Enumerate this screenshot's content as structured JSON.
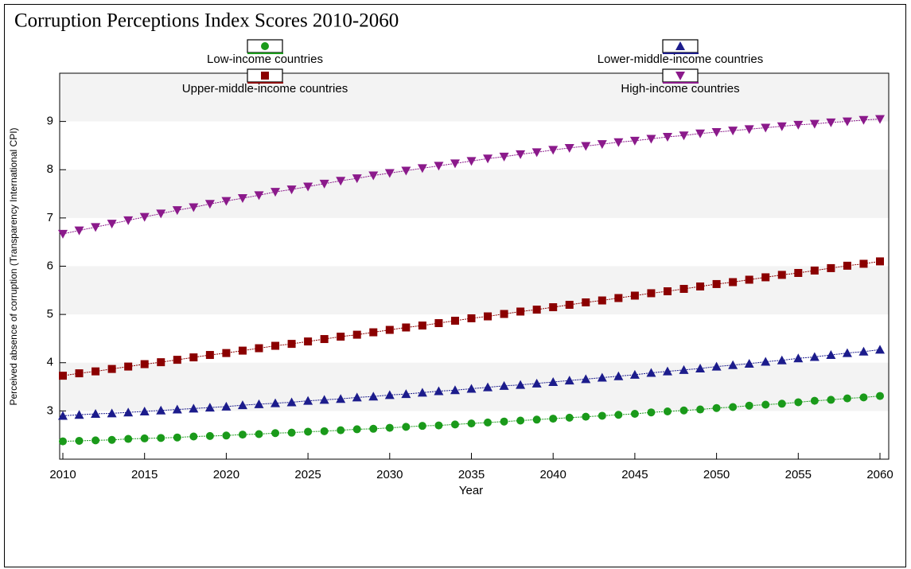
{
  "chart_data": {
    "type": "line",
    "title": "Corruption Perceptions Index Scores 2010-2060",
    "xlabel": "Year",
    "ylabel": "Perceived absence of corruption (Transparency International CPI)",
    "x": [
      2010,
      2011,
      2012,
      2013,
      2014,
      2015,
      2016,
      2017,
      2018,
      2019,
      2020,
      2021,
      2022,
      2023,
      2024,
      2025,
      2026,
      2027,
      2028,
      2029,
      2030,
      2031,
      2032,
      2033,
      2034,
      2035,
      2036,
      2037,
      2038,
      2039,
      2040,
      2041,
      2042,
      2043,
      2044,
      2045,
      2046,
      2047,
      2048,
      2049,
      2050,
      2051,
      2052,
      2053,
      2054,
      2055,
      2056,
      2057,
      2058,
      2059,
      2060
    ],
    "series": [
      {
        "name": "Low-income countries",
        "color": "#1a9a1a",
        "marker": "circle",
        "values": [
          2.37,
          2.38,
          2.39,
          2.4,
          2.42,
          2.43,
          2.44,
          2.45,
          2.47,
          2.48,
          2.49,
          2.51,
          2.52,
          2.54,
          2.55,
          2.57,
          2.58,
          2.6,
          2.62,
          2.63,
          2.65,
          2.67,
          2.69,
          2.7,
          2.72,
          2.74,
          2.76,
          2.78,
          2.8,
          2.82,
          2.84,
          2.86,
          2.88,
          2.9,
          2.92,
          2.94,
          2.97,
          2.99,
          3.01,
          3.03,
          3.06,
          3.08,
          3.11,
          3.13,
          3.15,
          3.18,
          3.21,
          3.23,
          3.26,
          3.28,
          3.31
        ]
      },
      {
        "name": "Lower-middle-income countries",
        "color": "#1c1c8c",
        "marker": "triangle-up",
        "values": [
          2.9,
          2.92,
          2.94,
          2.95,
          2.97,
          2.99,
          3.01,
          3.03,
          3.05,
          3.07,
          3.09,
          3.12,
          3.14,
          3.16,
          3.18,
          3.21,
          3.23,
          3.25,
          3.28,
          3.3,
          3.33,
          3.35,
          3.38,
          3.41,
          3.43,
          3.46,
          3.49,
          3.52,
          3.54,
          3.57,
          3.6,
          3.63,
          3.66,
          3.69,
          3.72,
          3.75,
          3.79,
          3.82,
          3.85,
          3.88,
          3.92,
          3.95,
          3.98,
          4.02,
          4.05,
          4.09,
          4.12,
          4.16,
          4.2,
          4.23,
          4.27
        ]
      },
      {
        "name": "Upper-middle-income countries",
        "color": "#8b0000",
        "marker": "square",
        "values": [
          3.73,
          3.78,
          3.82,
          3.87,
          3.92,
          3.97,
          4.01,
          4.06,
          4.11,
          4.16,
          4.2,
          4.25,
          4.3,
          4.35,
          4.39,
          4.44,
          4.49,
          4.54,
          4.58,
          4.63,
          4.68,
          4.73,
          4.77,
          4.82,
          4.87,
          4.92,
          4.96,
          5.01,
          5.06,
          5.1,
          5.15,
          5.2,
          5.25,
          5.29,
          5.34,
          5.39,
          5.44,
          5.48,
          5.53,
          5.58,
          5.63,
          5.67,
          5.72,
          5.77,
          5.82,
          5.86,
          5.91,
          5.96,
          6.01,
          6.05,
          6.1
        ]
      },
      {
        "name": "High-income countries",
        "color": "#8b1a8b",
        "marker": "triangle-down",
        "values": [
          6.67,
          6.74,
          6.81,
          6.88,
          6.95,
          7.02,
          7.09,
          7.16,
          7.22,
          7.29,
          7.35,
          7.41,
          7.47,
          7.54,
          7.59,
          7.65,
          7.71,
          7.77,
          7.82,
          7.88,
          7.93,
          7.98,
          8.03,
          8.08,
          8.13,
          8.18,
          8.23,
          8.27,
          8.32,
          8.36,
          8.41,
          8.45,
          8.49,
          8.53,
          8.57,
          8.6,
          8.64,
          8.68,
          8.71,
          8.75,
          8.78,
          8.81,
          8.84,
          8.87,
          8.9,
          8.93,
          8.95,
          8.98,
          9.0,
          9.03,
          9.05
        ]
      }
    ],
    "xlim": [
      2010,
      2060
    ],
    "xticks": [
      2010,
      2015,
      2020,
      2025,
      2030,
      2035,
      2040,
      2045,
      2050,
      2055,
      2060
    ],
    "ylim": [
      2,
      10
    ],
    "yticks": [
      3,
      4,
      5,
      6,
      7,
      8,
      9
    ],
    "grid": true
  }
}
